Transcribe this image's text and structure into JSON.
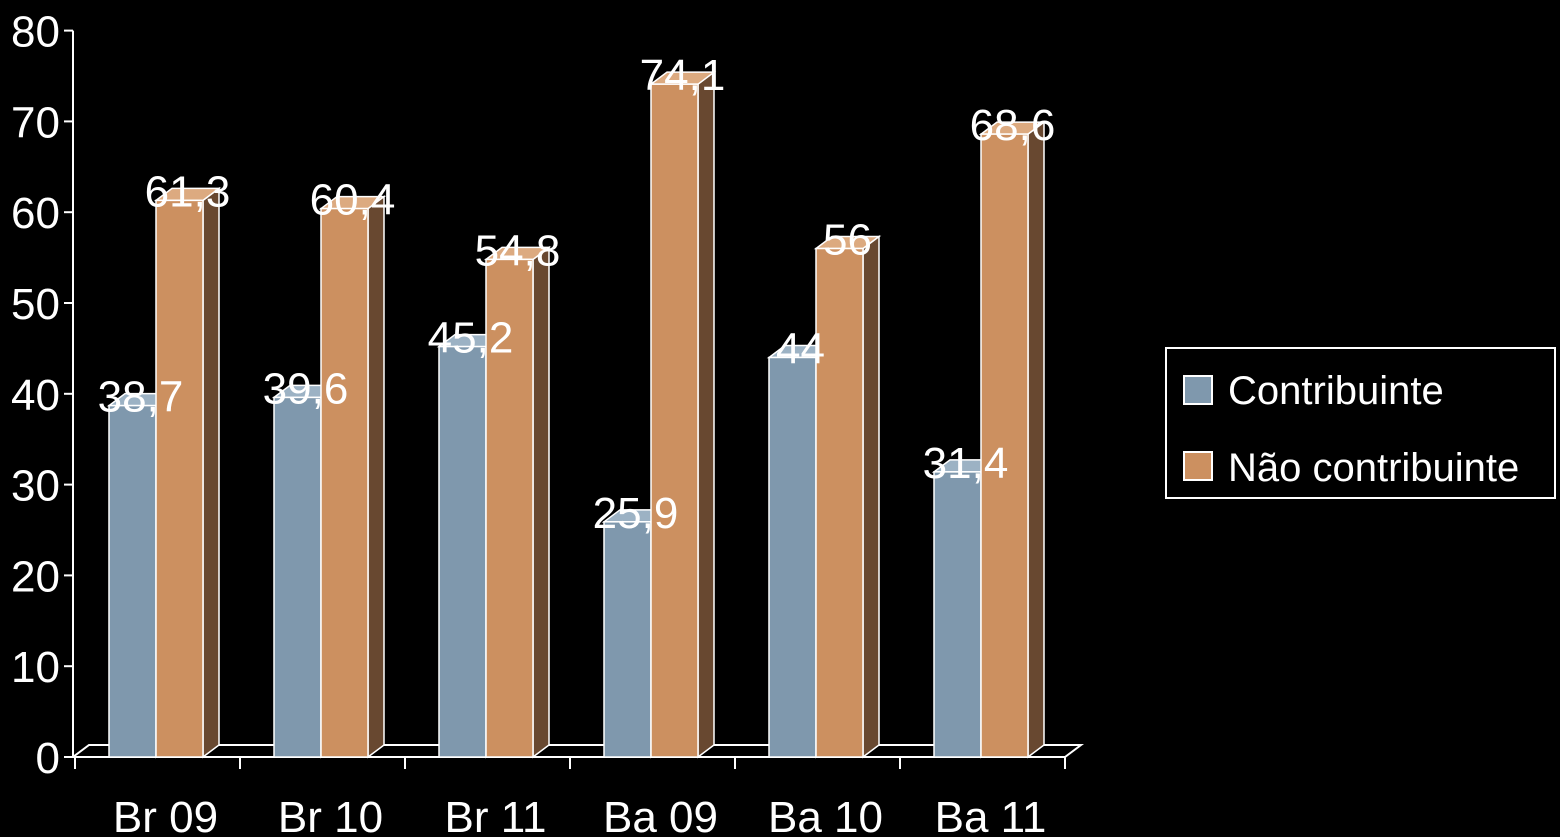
{
  "chart_data": {
    "type": "bar",
    "three_d": true,
    "categories": [
      "Br 09",
      "Br 10",
      "Br 11",
      "Ba 09",
      "Ba 10",
      "Ba 11"
    ],
    "series": [
      {
        "name": "Contribuinte",
        "values": [
          38.7,
          39.6,
          45.2,
          25.9,
          44,
          31.4
        ],
        "labels": [
          "38,7",
          "39,6",
          "45,2",
          "25,9",
          "44",
          "31,4"
        ]
      },
      {
        "name": "Não contribuinte",
        "values": [
          61.3,
          60.4,
          54.8,
          74.1,
          56,
          68.6
        ],
        "labels": [
          "61,3",
          "60,4",
          "54,8",
          "74,1",
          "56",
          "68,6"
        ]
      }
    ],
    "ylim": [
      0,
      80
    ],
    "yticks": [
      "0",
      "10",
      "20",
      "30",
      "40",
      "50",
      "60",
      "70",
      "80"
    ],
    "grid": false,
    "legend_position": "right",
    "colors": {
      "series": [
        "#7f98ad",
        "#cc9060"
      ],
      "side": [
        "#56687a",
        "#684830"
      ],
      "top": [
        "#9cb2c4",
        "#dcaa80"
      ],
      "background": "#000000",
      "axis": "#ffffff"
    }
  }
}
